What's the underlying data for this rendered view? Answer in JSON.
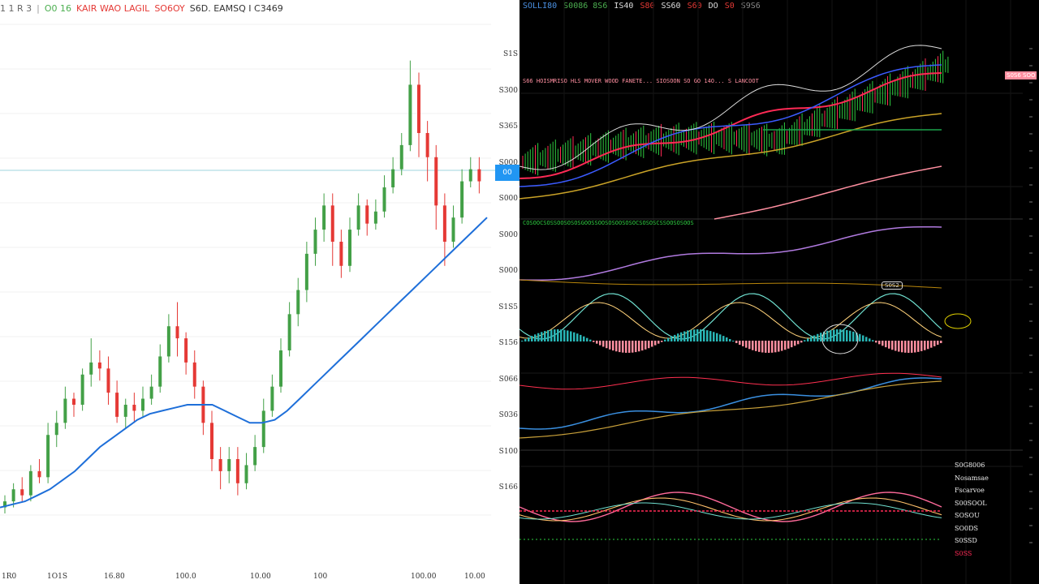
{
  "light_panel": {
    "header": [
      {
        "text": "1 1 R 3",
        "color": "#666666"
      },
      {
        "text": "|",
        "color": "#999999"
      },
      {
        "text": "O0 16",
        "color": "#4caf50"
      },
      {
        "text": "KAIR WAO LAGIL",
        "color": "#e53935"
      },
      {
        "text": "SO6OY",
        "color": "#e53935"
      },
      {
        "text": "S6D. EAMSQ I C3469",
        "color": "#333333"
      }
    ],
    "y_labels": [
      "S1S",
      "S300",
      "S365",
      "S000",
      "S000",
      "S000",
      "S000",
      "S1S5",
      "S156",
      "S066",
      "S036",
      "S100",
      "S166"
    ],
    "x_labels": [
      "1R0",
      "1O1S",
      "16.80",
      "100.0",
      "10.00",
      "100",
      "100.00",
      "10.00"
    ],
    "price_tag": "00",
    "colors": {
      "up": "#43a047",
      "down": "#e53935",
      "ma": "#1e6fd9",
      "hline": "#9fd4dd"
    }
  },
  "dark_panel": {
    "header": [
      {
        "text": "SOLLI80",
        "color": "#4a90e2"
      },
      {
        "text": "S0086 8S6",
        "color": "#4caf50"
      },
      {
        "text": "IS40",
        "color": "#dddddd"
      },
      {
        "text": "S80",
        "color": "#e53935"
      },
      {
        "text": "SS60",
        "color": "#dddddd"
      },
      {
        "text": "S60",
        "color": "#e53935"
      },
      {
        "text": "DO",
        "color": "#dddddd"
      },
      {
        "text": "S0",
        "color": "#e53935"
      },
      {
        "text": "S9S6",
        "color": "#888888"
      }
    ],
    "indicator_strip": "S66 HOISMRISO HLS MOVER WOOD FANETE... SIOSOON SO GO 14O... S LANCOOT",
    "indicator_strip_2": "COSOOCSOSSOOSOSOSGOOSSOOSOSOOSOSOCSOSOSCSSOOSOSOOS",
    "annotation": "S0S2",
    "price_tag": "S0S6 SOO",
    "legend": [
      "S0G8006",
      "Nosamsae",
      "Fscarvoe",
      "S00SOOL",
      "SOSOU",
      "SO0DS",
      "S0SSD",
      "S0SS"
    ],
    "colors": {
      "green": "#2ecc40",
      "red": "#ff2a55",
      "blue": "#3b5bff",
      "yellow": "#c9a227",
      "white": "#dddddd",
      "teal": "#29b6b6",
      "pink": "#ff8fa0",
      "violet": "#b07adf"
    }
  },
  "chart_data": [
    {
      "type": "candlestick",
      "title": "",
      "series": [
        {
          "name": "",
          "values": [
            [
              30,
              31,
              29,
              32
            ],
            [
              31,
              33,
              30,
              34
            ],
            [
              33,
              32,
              31,
              35
            ],
            [
              32,
              36,
              31,
              37
            ],
            [
              36,
              35,
              34,
              38
            ],
            [
              35,
              42,
              34,
              44
            ],
            [
              42,
              44,
              40,
              46
            ],
            [
              44,
              48,
              43,
              50
            ],
            [
              48,
              47,
              45,
              49
            ],
            [
              47,
              52,
              46,
              53
            ],
            [
              52,
              54,
              50,
              58
            ],
            [
              54,
              53,
              51,
              56
            ],
            [
              53,
              49,
              47,
              55
            ],
            [
              49,
              45,
              44,
              51
            ],
            [
              45,
              47,
              43,
              48
            ],
            [
              47,
              46,
              44,
              49
            ],
            [
              46,
              48,
              45,
              50
            ],
            [
              48,
              50,
              47,
              52
            ],
            [
              50,
              55,
              49,
              57
            ],
            [
              55,
              60,
              54,
              62
            ],
            [
              60,
              58,
              55,
              64
            ],
            [
              58,
              54,
              52,
              59
            ],
            [
              54,
              50,
              48,
              56
            ],
            [
              50,
              44,
              42,
              51
            ],
            [
              44,
              38,
              36,
              46
            ],
            [
              38,
              36,
              33,
              40
            ],
            [
              36,
              38,
              34,
              40
            ],
            [
              38,
              34,
              32,
              40
            ],
            [
              34,
              37,
              33,
              39
            ],
            [
              37,
              40,
              36,
              42
            ],
            [
              40,
              46,
              39,
              48
            ],
            [
              46,
              50,
              45,
              52
            ],
            [
              50,
              56,
              49,
              58
            ],
            [
              56,
              62,
              55,
              64
            ],
            [
              62,
              66,
              60,
              68
            ],
            [
              66,
              72,
              64,
              74
            ],
            [
              72,
              76,
              70,
              78
            ],
            [
              76,
              80,
              74,
              82
            ],
            [
              80,
              74,
              70,
              82
            ],
            [
              74,
              70,
              68,
              76
            ],
            [
              70,
              76,
              69,
              78
            ],
            [
              76,
              80,
              75,
              82
            ],
            [
              80,
              77,
              75,
              81
            ],
            [
              77,
              79,
              76,
              81
            ],
            [
              79,
              83,
              78,
              85
            ],
            [
              83,
              86,
              82,
              88
            ],
            [
              86,
              90,
              85,
              92
            ],
            [
              90,
              100,
              89,
              104
            ],
            [
              100,
              92,
              88,
              102
            ],
            [
              92,
              88,
              84,
              94
            ],
            [
              88,
              80,
              76,
              90
            ],
            [
              80,
              74,
              70,
              82
            ],
            [
              74,
              78,
              73,
              80
            ],
            [
              78,
              84,
              77,
              86
            ],
            [
              84,
              86,
              83,
              88
            ],
            [
              86,
              84,
              82,
              88
            ]
          ]
        },
        {
          "name": "",
          "values": [
            30,
            30.5,
            31,
            32,
            33,
            34.5,
            36,
            38,
            40,
            41.5,
            43,
            44.5,
            45.5,
            46,
            46.5,
            47,
            47,
            47,
            46,
            45,
            44,
            44,
            44.5,
            46,
            48,
            50,
            52,
            54,
            56,
            58,
            60,
            62,
            64,
            66,
            68,
            70,
            72,
            74,
            76,
            78
          ]
        }
      ],
      "ylim": [
        20,
        110
      ]
    },
    {
      "type": "line",
      "series": [
        {
          "name": "",
          "values": [
            40,
            42,
            44,
            48,
            52,
            56,
            58,
            62,
            66,
            70,
            74,
            78,
            82,
            86,
            88,
            90,
            92,
            94,
            96,
            98
          ]
        },
        {
          "name": "",
          "values": [
            30,
            32,
            34,
            36,
            38,
            40,
            42,
            44,
            48,
            52,
            56,
            60,
            64,
            68,
            72,
            76,
            80,
            84,
            88,
            92
          ]
        },
        {
          "name": "",
          "values": [
            20,
            22,
            24,
            26,
            28,
            30,
            32,
            34,
            36,
            38,
            40,
            42,
            44,
            46,
            48,
            50,
            52,
            54,
            56,
            58
          ]
        }
      ]
    }
  ]
}
